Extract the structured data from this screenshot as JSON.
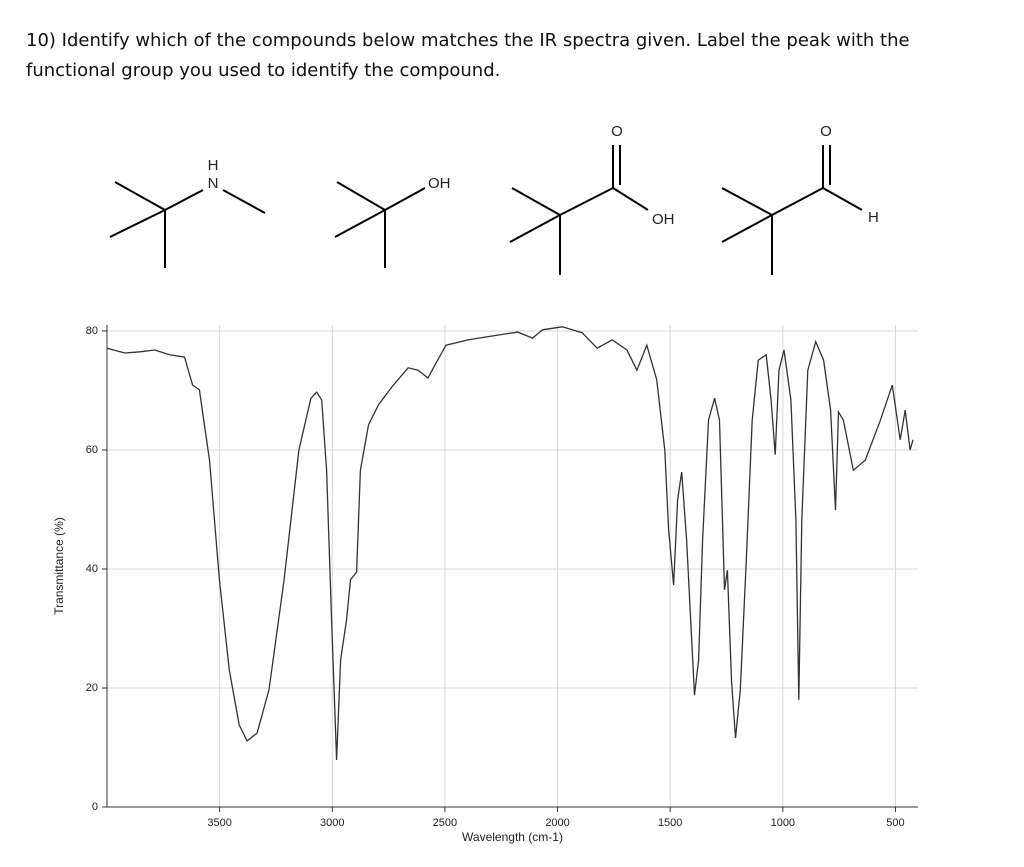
{
  "question": {
    "lines": [
      "10) Identify which of the compounds below matches the IR spectra given. Label the peak with the",
      "functional group you used to identify the compound."
    ]
  },
  "molecules": [
    {
      "labels": [
        "H",
        "N"
      ]
    },
    {
      "labels": [
        "OH"
      ]
    },
    {
      "labels": [
        "O",
        "OH"
      ]
    },
    {
      "labels": [
        "O",
        "H"
      ]
    }
  ],
  "chart_data": {
    "type": "line",
    "x_label": "Wavelength (cm-1)",
    "y_label": "Transmittance (%)",
    "xlim": [
      4000,
      400
    ],
    "ylim": [
      0,
      81
    ],
    "xticks": [
      3500,
      3000,
      2500,
      2000,
      1500,
      1000,
      500
    ],
    "yticks": [
      0,
      20,
      40,
      60,
      80
    ],
    "grid": true,
    "color": "#333333",
    "x": [
      4000,
      3921,
      3854,
      3788,
      3722,
      3656,
      3620,
      3590,
      3545,
      3501,
      3457,
      3413,
      3378,
      3334,
      3281,
      3214,
      3148,
      3095,
      3069,
      3047,
      3025,
      3003,
      2981,
      2963,
      2937,
      2919,
      2892,
      2875,
      2839,
      2795,
      2729,
      2663,
      2619,
      2575,
      2544,
      2495,
      2398,
      2266,
      2177,
      2111,
      2067,
      1979,
      1891,
      1824,
      1758,
      1692,
      1648,
      1604,
      1560,
      1524,
      1507,
      1485,
      1467,
      1449,
      1427,
      1409,
      1392,
      1374,
      1356,
      1330,
      1303,
      1281,
      1259,
      1246,
      1228,
      1210,
      1189,
      1162,
      1136,
      1109,
      1074,
      1052,
      1034,
      1017,
      995,
      964,
      942,
      929,
      916,
      889,
      854,
      819,
      788,
      766,
      753,
      731,
      687,
      634,
      567,
      514,
      479,
      457,
      435,
      422
    ],
    "values": [
      77.1,
      76.3,
      76.5,
      76.8,
      76,
      75.6,
      70.9,
      70.1,
      58.3,
      38.2,
      23,
      13.8,
      11.1,
      12.4,
      19.7,
      38.2,
      60,
      68.7,
      69.7,
      68.4,
      56.6,
      31.4,
      7.9,
      24.7,
      31.4,
      38.2,
      39.5,
      56.6,
      64.2,
      67.6,
      70.9,
      73.8,
      73.4,
      72.1,
      74.3,
      77.6,
      78.5,
      79.3,
      79.8,
      78.8,
      80.2,
      80.7,
      79.7,
      77.1,
      78.5,
      76.8,
      73.4,
      77.6,
      71.8,
      60,
      46.6,
      37.3,
      51.6,
      56.3,
      44.9,
      31.4,
      18.8,
      24.7,
      44.9,
      65,
      68.7,
      65,
      36.5,
      39.8,
      21.3,
      11.6,
      19.7,
      41.5,
      65,
      75.1,
      76,
      68.4,
      59.2,
      73.4,
      76.8,
      68.4,
      48.2,
      18,
      48.2,
      73.4,
      78.2,
      75.1,
      66.7,
      49.9,
      66.4,
      65,
      56.6,
      58.3,
      65,
      70.9,
      61.7,
      66.7,
      60,
      61.7
    ]
  }
}
